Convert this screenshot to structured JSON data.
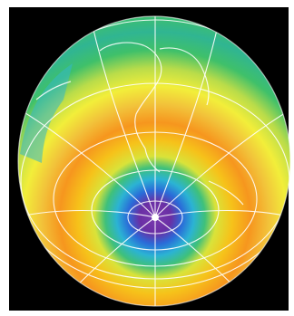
{
  "image": {
    "subject": "globe-false-color-map",
    "background_color": "#000000",
    "border_color": "#ffffff",
    "band_colors": [
      "#5c2d91",
      "#2a6bd8",
      "#33b8c8",
      "#3fc07a",
      "#b7d94a",
      "#f2ee2a",
      "#f6c21a",
      "#f6961e",
      "#f2c23a",
      "#f2ee3a",
      "#b9dc4a",
      "#3fc06a"
    ],
    "grid_color": "#ffffff",
    "coast_color": "#ffffff",
    "icons": [
      "graticule",
      "coastlines",
      "pole-marker"
    ]
  }
}
